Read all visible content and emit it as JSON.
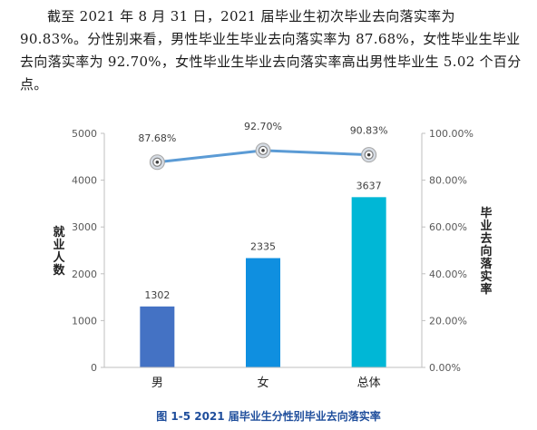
{
  "paragraph": "截至 2021 年 8 月 31 日，2021 届毕业生初次毕业去向落实率为 90.83%。分性别来看，男性毕业生毕业去向落实率为 87.68%，女性毕业生毕业去向落实率为 92.70%，女性毕业生毕业去向落实率高出男性毕业生 5.02 个百分点。",
  "chart_data": {
    "type": "bar",
    "title": "图 1-5 2021 届毕业生分性别毕业去向落实率",
    "categories": [
      "男",
      "女",
      "总体"
    ],
    "series": [
      {
        "type": "bar",
        "axis": "left",
        "values": [
          1302,
          2335,
          3637
        ],
        "labels": [
          "1302",
          "2335",
          "3637"
        ]
      },
      {
        "type": "line",
        "axis": "right",
        "values": [
          87.68,
          92.7,
          90.83
        ],
        "labels": [
          "87.68%",
          "92.70%",
          "90.83%"
        ]
      }
    ],
    "ylabel": "就业人数",
    "y2label": "毕业去向落实率",
    "ylim": [
      0,
      5000
    ],
    "yticks": [
      "0",
      "1000",
      "2000",
      "3000",
      "4000",
      "5000"
    ],
    "y2lim": [
      0,
      100
    ],
    "y2ticks": [
      "0.00%",
      "20.00%",
      "40.00%",
      "60.00%",
      "80.00%",
      "100.00%"
    ],
    "bar_colors": [
      "#4472c4",
      "#0f8fe0",
      "#00b7d6"
    ],
    "line_color": "#5b9bd5",
    "grid": false
  }
}
